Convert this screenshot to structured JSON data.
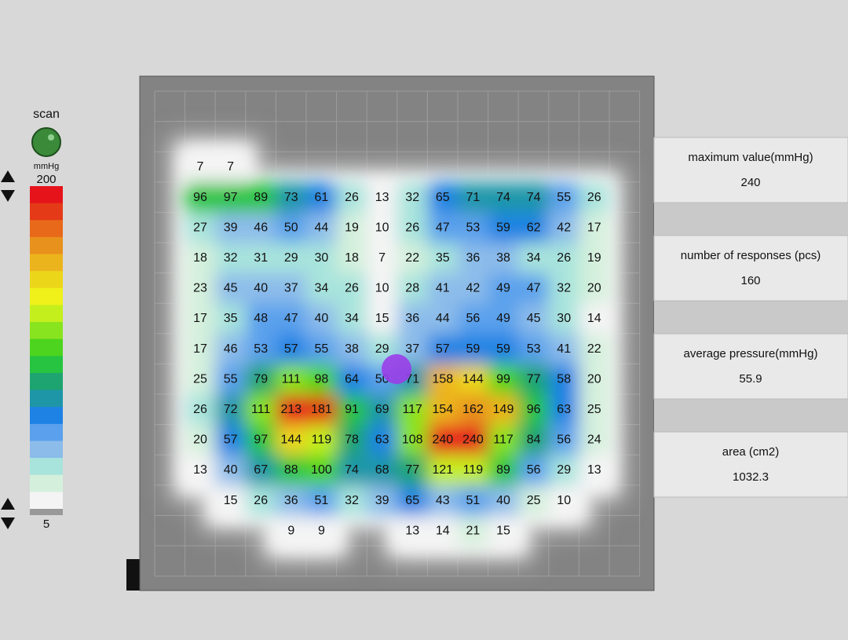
{
  "sidebar": {
    "scan_label": "scan",
    "unit": "mmHg",
    "scale_max": 200,
    "scale_min": 5
  },
  "pressure_grid": {
    "rows": [
      [
        7,
        7,
        null,
        null,
        null,
        null,
        null,
        null,
        null,
        null,
        null,
        null,
        null,
        null
      ],
      [
        96,
        97,
        89,
        73,
        61,
        26,
        13,
        32,
        65,
        71,
        74,
        74,
        55,
        26
      ],
      [
        27,
        39,
        46,
        50,
        44,
        19,
        10,
        26,
        47,
        53,
        59,
        62,
        42,
        17
      ],
      [
        18,
        32,
        31,
        29,
        30,
        18,
        7,
        22,
        35,
        36,
        38,
        34,
        26,
        19
      ],
      [
        23,
        45,
        40,
        37,
        34,
        26,
        10,
        28,
        41,
        42,
        49,
        47,
        32,
        20
      ],
      [
        17,
        35,
        48,
        47,
        40,
        34,
        15,
        36,
        44,
        56,
        49,
        45,
        30,
        14
      ],
      [
        17,
        46,
        53,
        57,
        55,
        38,
        29,
        37,
        57,
        59,
        59,
        53,
        41,
        22
      ],
      [
        25,
        55,
        79,
        111,
        98,
        64,
        50,
        71,
        158,
        144,
        99,
        77,
        58,
        20
      ],
      [
        26,
        72,
        111,
        213,
        181,
        91,
        69,
        117,
        154,
        162,
        149,
        96,
        63,
        25
      ],
      [
        20,
        57,
        97,
        144,
        119,
        78,
        63,
        108,
        240,
        240,
        117,
        84,
        56,
        24
      ],
      [
        13,
        40,
        67,
        88,
        100,
        74,
        68,
        77,
        121,
        119,
        89,
        56,
        29,
        13
      ],
      [
        null,
        15,
        26,
        36,
        51,
        32,
        39,
        65,
        43,
        51,
        40,
        25,
        10,
        null
      ],
      [
        null,
        null,
        null,
        9,
        9,
        null,
        null,
        13,
        14,
        21,
        15,
        null,
        null,
        null
      ]
    ]
  },
  "stats": [
    {
      "label": "maximum value(mmHg)",
      "value": "240"
    },
    {
      "label": "number of responses (pcs)",
      "value": "160"
    },
    {
      "label": "average pressure(mmHg)",
      "value": "55.9"
    },
    {
      "label": "area (cm2)",
      "value": "1032.3"
    }
  ]
}
